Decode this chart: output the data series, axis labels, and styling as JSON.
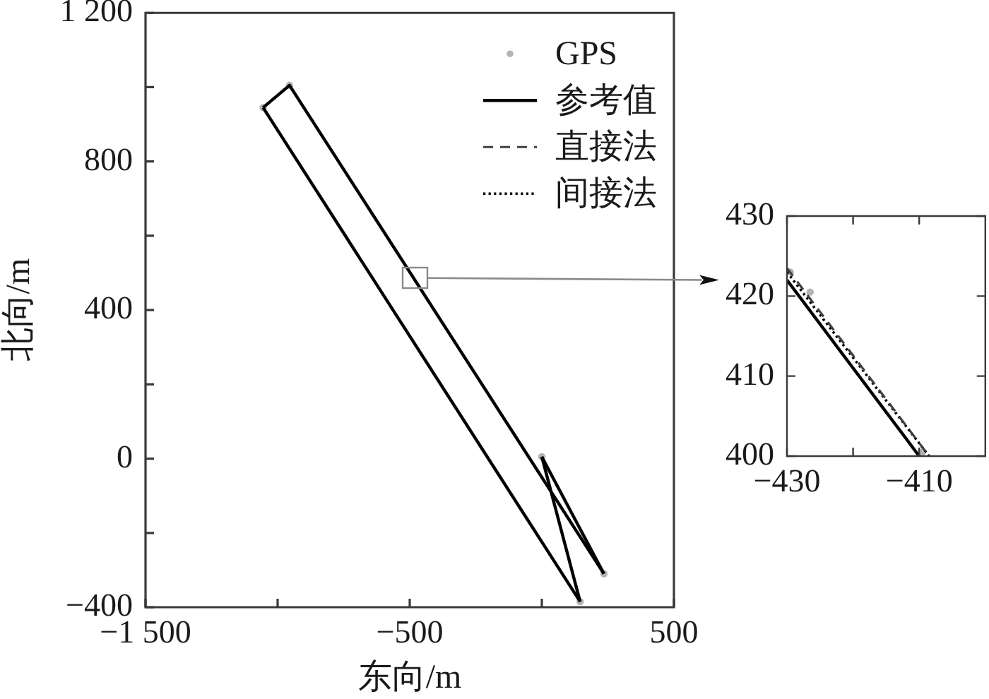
{
  "chart_data": [
    {
      "type": "line",
      "xlabel": "东向/m",
      "ylabel": "北向/m",
      "xlim": [
        -1500,
        500
      ],
      "xticks": [
        {
          "value": -1500,
          "label": "−1 500"
        },
        {
          "value": -1000,
          "label": null
        },
        {
          "value": -500,
          "label": "−500"
        },
        {
          "value": 0,
          "label": null
        },
        500
      ],
      "ylim": [
        -400,
        1200
      ],
      "yticks": [
        {
          "value": -400,
          "label": "−400"
        },
        {
          "value": -200,
          "label": null
        },
        0,
        {
          "value": 200,
          "label": null
        },
        400,
        {
          "value": 600,
          "label": null
        },
        800,
        {
          "value": 1000,
          "label": null
        },
        {
          "value": 1200,
          "label": "1 200"
        }
      ],
      "legend": "top right",
      "series": [
        {
          "name": "GPS",
          "type": "scatter",
          "marker": "circle",
          "color": "#b4b4b4",
          "x": [
            0,
            235,
            -955,
            -1055,
            145
          ],
          "values": [
            5,
            -310,
            1005,
            945,
            -385
          ]
        },
        {
          "name": "参考值",
          "line_style": "solid",
          "color": "#000000",
          "x": [
            0,
            235
          ],
          "values": [
            5,
            -310
          ]
        },
        {
          "line_style": "solid",
          "color": "#000000",
          "x": [
            -1055,
            -955,
            235
          ],
          "values": [
            945,
            1005,
            -310
          ]
        },
        {
          "line_style": "solid",
          "color": "#000000",
          "x": [
            -1055,
            145
          ],
          "values": [
            945,
            -385
          ]
        },
        {
          "line_style": "solid",
          "color": "#000000",
          "x": [
            0,
            145
          ],
          "values": [
            5,
            -385
          ]
        },
        {
          "name": "直接法",
          "line_style": "dashed",
          "color": "#404040"
        },
        {
          "name": "间接法",
          "line_style": "dotted",
          "color": "#000000"
        }
      ]
    },
    {
      "type": "line",
      "xlim": [
        -430,
        -400
      ],
      "xticks": [
        {
          "value": -430,
          "label": "−430"
        },
        {
          "value": -420,
          "label": null
        },
        {
          "value": -410,
          "label": "−410"
        }
      ],
      "ylim": [
        400,
        430
      ],
      "yticks": [
        400,
        410,
        420,
        430
      ],
      "series": [
        {
          "type": "scatter",
          "marker": "circle",
          "color": "#b4b4b4",
          "x": [
            -429.5,
            -426.5,
            -409.5
          ],
          "values": [
            423,
            420.5,
            400.5
          ]
        },
        {
          "line_style": "solid",
          "color": "#000000",
          "x": [
            -430,
            -410
          ],
          "values": [
            422,
            400
          ]
        },
        {
          "line_style": "dashed",
          "color": "#404040",
          "x": [
            -430,
            -408.5
          ],
          "values": [
            423.5,
            400
          ]
        },
        {
          "line_style": "dotted",
          "color": "#000000",
          "x": [
            -430,
            -408.5
          ],
          "values": [
            423,
            400
          ]
        }
      ]
    }
  ]
}
